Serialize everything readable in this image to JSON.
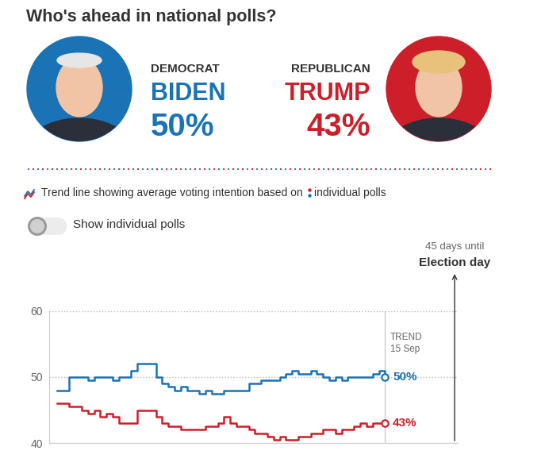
{
  "header": {
    "title": "Who's ahead in national polls?",
    "candidates": [
      {
        "party": "DEMOCRAT",
        "name": "BIDEN",
        "share": "50%",
        "color": "#1a73b4"
      },
      {
        "party": "REPUBLICAN",
        "name": "TRUMP",
        "share": "43%",
        "color": "#cc1f2a"
      }
    ]
  },
  "key": {
    "trend": "Trend line showing average voting intention based on",
    "polls": "individual polls"
  },
  "toggle": "Show individual polls",
  "chart_data": {
    "type": "line",
    "grid": true,
    "tick_labels": "y",
    "x": [
      -257,
      -253,
      -249,
      -245,
      -241,
      -237,
      -233,
      -229,
      -225,
      -221,
      -217,
      -213,
      -209,
      -205,
      -201,
      -197,
      -193,
      -189,
      -185,
      -181,
      -177,
      -173,
      -169,
      -165,
      -161,
      -157,
      -153,
      -149,
      -145,
      -141,
      -137,
      -133,
      -129,
      -125,
      -121,
      -117,
      -113,
      -109,
      -105,
      -101,
      -97,
      -93,
      -89,
      -85,
      -81,
      -77,
      -73,
      -69,
      -65,
      -61,
      -57,
      -53,
      -49,
      -45
    ],
    "xlim": [
      -262,
      2
    ],
    "xticks": [],
    "ylim": [
      40,
      60
    ],
    "yticks": [
      40,
      50,
      60
    ],
    "series": [
      {
        "name": "BIDEN",
        "color": "#1a73b4",
        "values": [
          48,
          48,
          50,
          50,
          50,
          49.5,
          50,
          50,
          50,
          49.5,
          50,
          50,
          51,
          52,
          52,
          52,
          50,
          49,
          48.5,
          48,
          48.5,
          48,
          48,
          47.5,
          48,
          47.5,
          47.5,
          48,
          48,
          48,
          48,
          49,
          49,
          49.5,
          49.5,
          49.5,
          50,
          50.5,
          51,
          50.5,
          50.5,
          51,
          50.5,
          50,
          49.5,
          50,
          49.5,
          50,
          50,
          50,
          50,
          50.5,
          51,
          50
        ],
        "value_labels": [
          null,
          null,
          null,
          null,
          null,
          null,
          null,
          null,
          null,
          null,
          null,
          null,
          null,
          null,
          null,
          null,
          null,
          null,
          null,
          null,
          null,
          null,
          null,
          null,
          null,
          null,
          null,
          null,
          null,
          null,
          null,
          null,
          null,
          null,
          null,
          null,
          null,
          null,
          null,
          null,
          null,
          null,
          null,
          null,
          null,
          null,
          null,
          null,
          null,
          null,
          null,
          null,
          null,
          "50%"
        ]
      },
      {
        "name": "TRUMP",
        "color": "#cc1f2a",
        "values": [
          46,
          46,
          45.5,
          45.5,
          45,
          44.5,
          45,
          44,
          44.5,
          44,
          43,
          43,
          43,
          45,
          45,
          45,
          44,
          43,
          42.5,
          42.5,
          42,
          42,
          42,
          42,
          42.5,
          42.5,
          43,
          44,
          43,
          42.5,
          42.5,
          42,
          41.5,
          41.5,
          41,
          40.5,
          41,
          40.5,
          40.5,
          41,
          41,
          41.5,
          41.5,
          42,
          42,
          41.5,
          42,
          42,
          42.5,
          43,
          42.5,
          43,
          43,
          43
        ],
        "value_labels": [
          null,
          null,
          null,
          null,
          null,
          null,
          null,
          null,
          null,
          null,
          null,
          null,
          null,
          null,
          null,
          null,
          null,
          null,
          null,
          null,
          null,
          null,
          null,
          null,
          null,
          null,
          null,
          null,
          null,
          null,
          null,
          null,
          null,
          null,
          null,
          null,
          null,
          null,
          null,
          null,
          null,
          null,
          null,
          null,
          null,
          null,
          null,
          null,
          null,
          null,
          null,
          null,
          null,
          "43%"
        ]
      }
    ],
    "trend_label": "TREND",
    "trend_date": "15 Sep",
    "election": {
      "x": 0,
      "note": "45 days until",
      "label": "Election day"
    }
  }
}
